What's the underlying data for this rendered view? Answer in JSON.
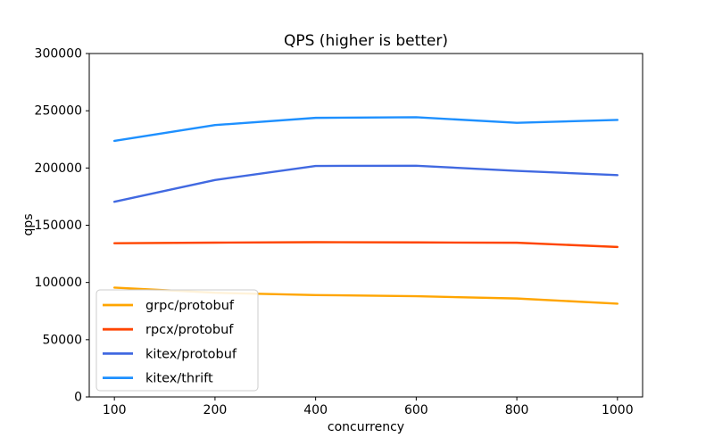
{
  "figure": {
    "title": "QPS (higher is better)",
    "xlabel": "concurrency",
    "ylabel": "qps"
  },
  "chart_data": {
    "type": "line",
    "title": "QPS (higher is better)",
    "xlabel": "concurrency",
    "ylabel": "qps",
    "x_type": "categorical",
    "categories": [
      "100",
      "200",
      "400",
      "600",
      "800",
      "1000"
    ],
    "y_ticks": [
      "0",
      "50000",
      "100000",
      "150000",
      "200000",
      "250000",
      "300000"
    ],
    "ylim": [
      0,
      300000
    ],
    "grid": false,
    "legend_position": "lower-left",
    "series": [
      {
        "name": "grpc/protobuf",
        "color": "#FFA500",
        "values": [
          95500,
          91000,
          89000,
          88000,
          86000,
          81500
        ]
      },
      {
        "name": "rpcx/protobuf",
        "color": "#FF4500",
        "values": [
          134300,
          134800,
          135200,
          135000,
          134700,
          131000
        ]
      },
      {
        "name": "kitex/protobuf",
        "color": "#4169E1",
        "values": [
          170500,
          189500,
          201800,
          202000,
          197500,
          193800
        ]
      },
      {
        "name": "kitex/thrift",
        "color": "#1E90FF",
        "values": [
          223700,
          237500,
          243800,
          244300,
          239500,
          242000
        ]
      }
    ],
    "colors": {
      "frame": "#000000",
      "legend_border": "#cccccc",
      "legend_bg": "rgba(255,255,255,0.85)",
      "background": "#ffffff"
    }
  }
}
